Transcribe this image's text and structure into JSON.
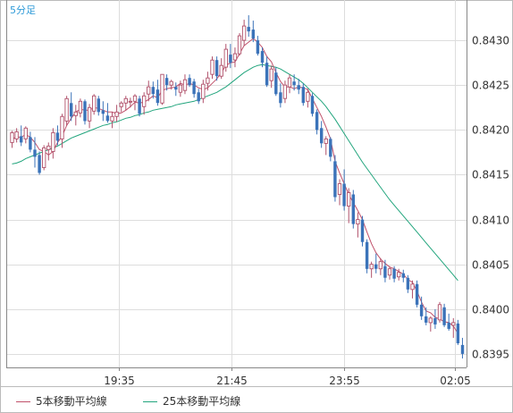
{
  "chart_data": {
    "type": "candlestick",
    "timeframe_label": "5分足",
    "x_ticks": [
      "19:35",
      "21:45",
      "23:55",
      "02:05"
    ],
    "y_ticks": [
      "0.8430",
      "0.8425",
      "0.8420",
      "0.8415",
      "0.8410",
      "0.8405",
      "0.8400",
      "0.8395"
    ],
    "ylim": [
      0.83935,
      0.84345
    ],
    "grid": true,
    "colors": {
      "up": "#b0506a",
      "down": "#3b73b9",
      "ma5": "#c0506a",
      "ma25": "#22a57d",
      "grid": "#dddddd",
      "axis": "#888888",
      "text": "#333333"
    },
    "legend": [
      {
        "label": "5本移動平均線",
        "color": "#c0506a"
      },
      {
        "label": "25本移動平均線",
        "color": "#22a57d"
      }
    ],
    "ohlc": [
      [
        0.84186,
        0.84199,
        0.8418,
        0.84197
      ],
      [
        0.8419,
        0.84202,
        0.84186,
        0.84198
      ],
      [
        0.84193,
        0.84205,
        0.84182,
        0.84186
      ],
      [
        0.8419,
        0.84204,
        0.84185,
        0.84202
      ],
      [
        0.84192,
        0.84198,
        0.84175,
        0.84178
      ],
      [
        0.84178,
        0.84192,
        0.84158,
        0.8417
      ],
      [
        0.84172,
        0.84176,
        0.8415,
        0.84152
      ],
      [
        0.84158,
        0.84183,
        0.84155,
        0.8418
      ],
      [
        0.84178,
        0.84186,
        0.84166,
        0.84182
      ],
      [
        0.84176,
        0.84202,
        0.84168,
        0.84197
      ],
      [
        0.84197,
        0.84205,
        0.84183,
        0.84188
      ],
      [
        0.8419,
        0.84218,
        0.8418,
        0.84215
      ],
      [
        0.8421,
        0.84238,
        0.84205,
        0.84235
      ],
      [
        0.8423,
        0.84242,
        0.8421,
        0.84215
      ],
      [
        0.84216,
        0.84228,
        0.84205,
        0.8422
      ],
      [
        0.84219,
        0.84235,
        0.84214,
        0.84232
      ],
      [
        0.84232,
        0.84234,
        0.84206,
        0.8421
      ],
      [
        0.8421,
        0.84229,
        0.84202,
        0.84225
      ],
      [
        0.84221,
        0.8424,
        0.84217,
        0.84238
      ],
      [
        0.84235,
        0.84238,
        0.84216,
        0.8422
      ],
      [
        0.84222,
        0.84232,
        0.8421,
        0.84218
      ],
      [
        0.84216,
        0.8423,
        0.84208,
        0.8421
      ],
      [
        0.8421,
        0.8422,
        0.84202,
        0.84215
      ],
      [
        0.84215,
        0.84228,
        0.84209,
        0.8422
      ],
      [
        0.84226,
        0.84232,
        0.8422,
        0.8423
      ],
      [
        0.8423,
        0.84238,
        0.84222,
        0.84235
      ],
      [
        0.84231,
        0.84236,
        0.84225,
        0.84232
      ],
      [
        0.84232,
        0.8424,
        0.84222,
        0.84238
      ],
      [
        0.84235,
        0.84238,
        0.84215,
        0.84218
      ],
      [
        0.84226,
        0.84242,
        0.84217,
        0.84238
      ],
      [
        0.8424,
        0.84255,
        0.84232,
        0.84248
      ],
      [
        0.84248,
        0.84254,
        0.84235,
        0.8424
      ],
      [
        0.84245,
        0.84256,
        0.84227,
        0.8423
      ],
      [
        0.8423,
        0.84262,
        0.84228,
        0.84262
      ],
      [
        0.84258,
        0.84262,
        0.84244,
        0.8425
      ],
      [
        0.8425,
        0.84256,
        0.84245,
        0.84254
      ],
      [
        0.84248,
        0.84253,
        0.84238,
        0.84245
      ],
      [
        0.84242,
        0.84255,
        0.84237,
        0.8425
      ],
      [
        0.84244,
        0.84262,
        0.8424,
        0.84256
      ],
      [
        0.84258,
        0.84262,
        0.84248,
        0.8425
      ],
      [
        0.84254,
        0.84257,
        0.84236,
        0.8424
      ],
      [
        0.84242,
        0.84246,
        0.84229,
        0.84232
      ],
      [
        0.84235,
        0.84256,
        0.8423,
        0.84251
      ],
      [
        0.84252,
        0.84265,
        0.84244,
        0.84258
      ],
      [
        0.84262,
        0.84282,
        0.84257,
        0.84278
      ],
      [
        0.84278,
        0.84282,
        0.84255,
        0.8426
      ],
      [
        0.8426,
        0.8428,
        0.84257,
        0.84272
      ],
      [
        0.8427,
        0.84296,
        0.84265,
        0.8429
      ],
      [
        0.84284,
        0.84296,
        0.84269,
        0.84275
      ],
      [
        0.84278,
        0.84292,
        0.8427,
        0.84285
      ],
      [
        0.84285,
        0.84308,
        0.84283,
        0.84305
      ],
      [
        0.843,
        0.84323,
        0.84294,
        0.84316
      ],
      [
        0.84315,
        0.84328,
        0.84304,
        0.8431
      ],
      [
        0.84312,
        0.84322,
        0.84298,
        0.84302
      ],
      [
        0.843,
        0.84305,
        0.84283,
        0.84285
      ],
      [
        0.84288,
        0.84292,
        0.8427,
        0.84275
      ],
      [
        0.84275,
        0.84282,
        0.84248,
        0.8425
      ],
      [
        0.84255,
        0.84272,
        0.84247,
        0.84268
      ],
      [
        0.84264,
        0.8427,
        0.84238,
        0.8424
      ],
      [
        0.84242,
        0.84252,
        0.84225,
        0.8423
      ],
      [
        0.84235,
        0.84255,
        0.8423,
        0.8425
      ],
      [
        0.84248,
        0.84262,
        0.84241,
        0.84258
      ],
      [
        0.84254,
        0.84262,
        0.84244,
        0.8425
      ],
      [
        0.8425,
        0.84257,
        0.8424,
        0.84245
      ],
      [
        0.84248,
        0.84252,
        0.84227,
        0.8423
      ],
      [
        0.84232,
        0.84246,
        0.84225,
        0.84242
      ],
      [
        0.84238,
        0.84241,
        0.84215,
        0.84218
      ],
      [
        0.8422,
        0.84223,
        0.84195,
        0.842
      ],
      [
        0.84202,
        0.8421,
        0.8418,
        0.84185
      ],
      [
        0.84185,
        0.84193,
        0.84172,
        0.8419
      ],
      [
        0.8419,
        0.84192,
        0.84165,
        0.8417
      ],
      [
        0.84165,
        0.84172,
        0.8412,
        0.84125
      ],
      [
        0.84128,
        0.84145,
        0.84116,
        0.8414
      ],
      [
        0.8414,
        0.84156,
        0.8411,
        0.84115
      ],
      [
        0.84115,
        0.84135,
        0.84096,
        0.8413
      ],
      [
        0.84128,
        0.84133,
        0.8409,
        0.84095
      ],
      [
        0.84095,
        0.84108,
        0.8408,
        0.841
      ],
      [
        0.841,
        0.84104,
        0.8407,
        0.84075
      ],
      [
        0.84075,
        0.84078,
        0.8404,
        0.84045
      ],
      [
        0.84045,
        0.84053,
        0.84035,
        0.8405
      ],
      [
        0.8405,
        0.84062,
        0.8404,
        0.84045
      ],
      [
        0.84045,
        0.84057,
        0.84038,
        0.84053
      ],
      [
        0.84048,
        0.84055,
        0.8403,
        0.84035
      ],
      [
        0.84038,
        0.84048,
        0.84033,
        0.84045
      ],
      [
        0.84045,
        0.84048,
        0.8403,
        0.84034
      ],
      [
        0.84036,
        0.84045,
        0.84032,
        0.84041
      ],
      [
        0.8404,
        0.84044,
        0.8403,
        0.84035
      ],
      [
        0.84035,
        0.84038,
        0.84018,
        0.84022
      ],
      [
        0.84022,
        0.84032,
        0.84012,
        0.84028
      ],
      [
        0.84028,
        0.84032,
        0.84002,
        0.84005
      ],
      [
        0.84005,
        0.84014,
        0.83988,
        0.83992
      ],
      [
        0.83992,
        0.84002,
        0.83982,
        0.83985
      ],
      [
        0.83985,
        0.83992,
        0.83975,
        0.8399
      ],
      [
        0.8399,
        0.84,
        0.83978,
        0.83983
      ],
      [
        0.83988,
        0.84008,
        0.83985,
        0.84005
      ],
      [
        0.84002,
        0.84006,
        0.8398,
        0.83982
      ],
      [
        0.83985,
        0.83995,
        0.83976,
        0.83978
      ],
      [
        0.83982,
        0.8399,
        0.83968,
        0.83985
      ],
      [
        0.83984,
        0.83988,
        0.8396,
        0.83962
      ],
      [
        0.8396,
        0.83968,
        0.83945,
        0.8395
      ]
    ],
    "ma5": [
      0.8419,
      0.84192,
      0.84192,
      0.84195,
      0.84192,
      0.84186,
      0.84178,
      0.84176,
      0.84172,
      0.84176,
      0.84186,
      0.84193,
      0.84205,
      0.84213,
      0.8422,
      0.84223,
      0.84222,
      0.84222,
      0.84225,
      0.84224,
      0.84222,
      0.8422,
      0.8422,
      0.84218,
      0.84219,
      0.84222,
      0.84226,
      0.84231,
      0.8423,
      0.84231,
      0.84234,
      0.84238,
      0.84236,
      0.84244,
      0.84246,
      0.84247,
      0.84248,
      0.84252,
      0.8425,
      0.84252,
      0.8425,
      0.84247,
      0.84245,
      0.84247,
      0.84252,
      0.84257,
      0.84264,
      0.84272,
      0.84275,
      0.84276,
      0.84285,
      0.84294,
      0.84298,
      0.84302,
      0.84298,
      0.84292,
      0.84282,
      0.84276,
      0.84264,
      0.84254,
      0.84248,
      0.84248,
      0.84246,
      0.84248,
      0.84247,
      0.84245,
      0.84235,
      0.84225,
      0.84215,
      0.84203,
      0.8419,
      0.84165,
      0.84152,
      0.8414,
      0.84128,
      0.84119,
      0.8411,
      0.841,
      0.84086,
      0.84073,
      0.84063,
      0.84056,
      0.84051,
      0.84047,
      0.84045,
      0.84042,
      0.84039,
      0.84033,
      0.8403,
      0.8402,
      0.84008,
      0.83998,
      0.83996,
      0.83991,
      0.83989,
      0.83986,
      0.83985,
      0.83981,
      0.83973
    ],
    "ma25": [
      0.84162,
      0.84163,
      0.84165,
      0.84168,
      0.8417,
      0.84172,
      0.84174,
      0.84176,
      0.84178,
      0.8418,
      0.84182,
      0.84185,
      0.84188,
      0.84191,
      0.84193,
      0.84195,
      0.84197,
      0.84199,
      0.84201,
      0.84203,
      0.84205,
      0.84206,
      0.84208,
      0.84209,
      0.84211,
      0.84213,
      0.84214,
      0.84216,
      0.84217,
      0.84219,
      0.8422,
      0.84222,
      0.84223,
      0.84224,
      0.84225,
      0.84226,
      0.84228,
      0.84229,
      0.8423,
      0.84231,
      0.84232,
      0.84234,
      0.84236,
      0.84238,
      0.8424,
      0.84242,
      0.84245,
      0.84248,
      0.84252,
      0.84256,
      0.8426,
      0.84264,
      0.84267,
      0.8427,
      0.84272,
      0.84273,
      0.84272,
      0.84271,
      0.8427,
      0.84268,
      0.84265,
      0.84262,
      0.84259,
      0.84256,
      0.84252,
      0.84247,
      0.84242,
      0.84237,
      0.84232,
      0.84226,
      0.84219,
      0.84212,
      0.84204,
      0.84196,
      0.84188,
      0.8418,
      0.84172,
      0.84164,
      0.84157,
      0.8415,
      0.84143,
      0.84136,
      0.84129,
      0.84122,
      0.84116,
      0.8411,
      0.84104,
      0.84098,
      0.84092,
      0.84086,
      0.8408,
      0.84074,
      0.84068,
      0.84062,
      0.84056,
      0.8405,
      0.84044,
      0.84038,
      0.84032
    ]
  }
}
